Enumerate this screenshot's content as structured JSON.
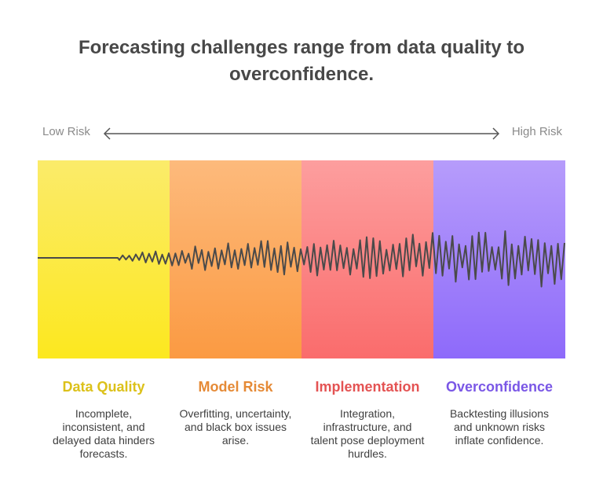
{
  "title": "Forecasting challenges range from data quality to overconfidence.",
  "scale": {
    "low_label": "Low Risk",
    "high_label": "High Risk"
  },
  "colors": {
    "title": "#484848",
    "axis": "#555555",
    "wave": "#4a4a4a",
    "data_quality": "#dcc11a",
    "model_risk": "#e58a36",
    "implementation": "#e45353",
    "overconfidence": "#7a57e6"
  },
  "categories": [
    {
      "title": "Data Quality",
      "description": "Incomplete, inconsistent, and delayed data hinders forecasts."
    },
    {
      "title": "Model Risk",
      "description": "Overfitting, uncertainty, and black box issues arise."
    },
    {
      "title": "Implementation",
      "description": "Integration, infrastructure, and talent pose deployment hurdles."
    },
    {
      "title": "Overconfidence",
      "description": "Backtesting illusions and unknown risks inflate confidence."
    }
  ]
}
